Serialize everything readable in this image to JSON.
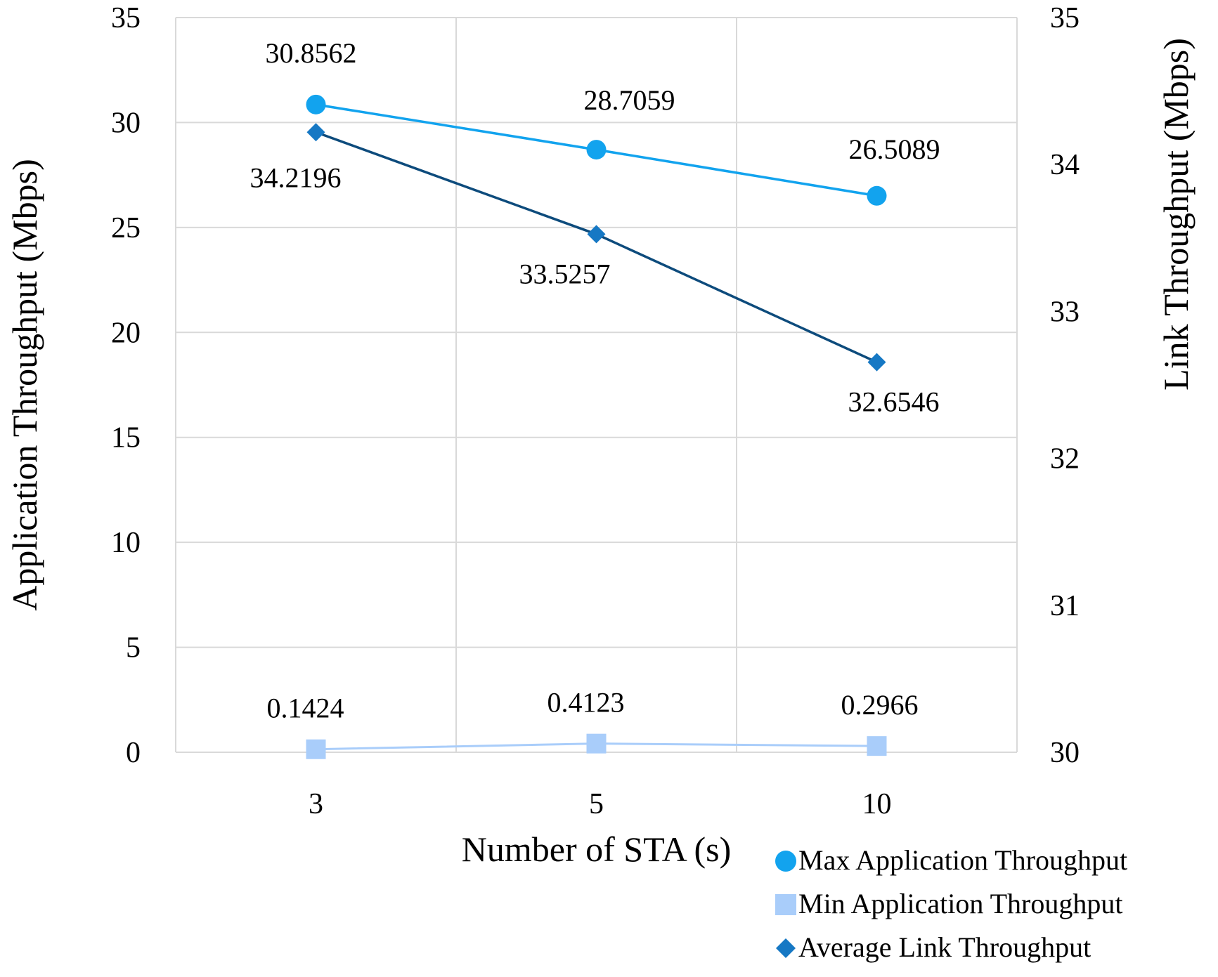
{
  "chart_data": {
    "type": "line",
    "title": "",
    "xlabel": "Number of STA (s)",
    "ylabel": "Application Throughput (Mbps)",
    "y2label": "Link Throughput (Mbps)",
    "categories": [
      "3",
      "5",
      "10"
    ],
    "ylim": [
      0,
      35
    ],
    "yticks": [
      "0",
      "5",
      "10",
      "15",
      "20",
      "25",
      "30",
      "35"
    ],
    "y2lim": [
      30,
      35
    ],
    "y2ticks": [
      "30",
      "31",
      "32",
      "33",
      "34",
      "35"
    ],
    "grid": true,
    "legend_position": "bottom-right",
    "series": [
      {
        "name": "Max Application Throughput",
        "axis": "left",
        "marker": "circle",
        "color": "#12a3ee",
        "values": [
          30.8562,
          28.7059,
          26.5089
        ],
        "labels": [
          "30.8562",
          "28.7059",
          "26.5089"
        ]
      },
      {
        "name": "Min Application Throughput",
        "axis": "left",
        "marker": "square",
        "color": "#a9cdfa",
        "values": [
          0.1424,
          0.4123,
          0.2966
        ],
        "labels": [
          "0.1424",
          "0.4123",
          "0.2966"
        ]
      },
      {
        "name": "Average Link Throughput",
        "axis": "right",
        "marker": "diamond",
        "color": "#0d4b7c",
        "marker_color": "#1678c4",
        "values": [
          34.2196,
          33.5257,
          32.6546
        ],
        "labels": [
          "34.2196",
          "33.5257",
          "32.6546"
        ]
      }
    ]
  }
}
